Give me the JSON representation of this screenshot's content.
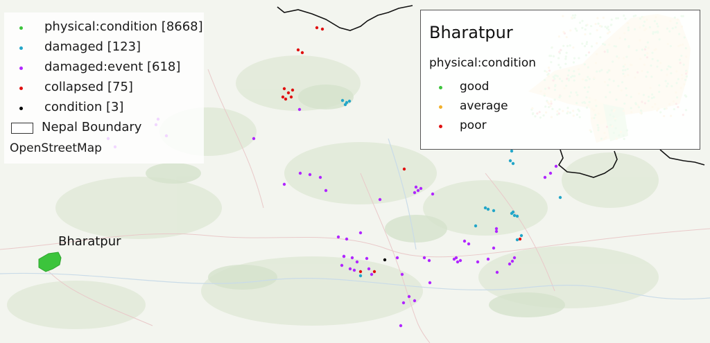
{
  "map": {
    "basemap": "OpenStreetMap",
    "colors": {
      "physical_condition": "#3cc43c",
      "damaged": "#23a6c8",
      "damaged_event": "#b026ff",
      "collapsed": "#e01010",
      "condition": "#000000",
      "good": "#3cc43c",
      "average": "#f2b02a",
      "poor": "#e01010"
    }
  },
  "legend": {
    "items": [
      {
        "label": "physical:condition [8668]",
        "color": "#3cc43c"
      },
      {
        "label": "damaged [123]",
        "color": "#23a6c8"
      },
      {
        "label": "damaged:event [618]",
        "color": "#b026ff"
      },
      {
        "label": "collapsed [75]",
        "color": "#e01010"
      },
      {
        "label": "condition [3]",
        "color": "#000000"
      }
    ],
    "boundary_label": "Nepal Boundary",
    "basemap_label": "OpenStreetMap"
  },
  "inset": {
    "title": "Bharatpur",
    "subtitle": "physical:condition",
    "items": [
      {
        "label": "good",
        "color": "#3cc43c"
      },
      {
        "label": "average",
        "color": "#f2b02a"
      },
      {
        "label": "poor",
        "color": "#e01010"
      }
    ]
  },
  "place_label": "Bharatpur"
}
